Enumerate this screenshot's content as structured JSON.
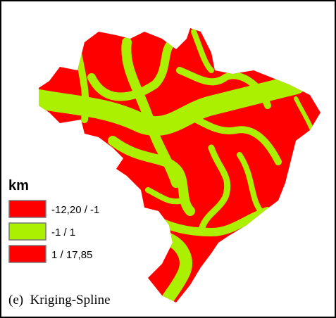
{
  "legend": {
    "title": "km",
    "items": [
      {
        "label": "-12,20 / -1",
        "color": "#ff0000"
      },
      {
        "label": "-1 / 1",
        "color": "#aaf000"
      },
      {
        "label": "1 / 17,85",
        "color": "#ff0000"
      }
    ]
  },
  "caption": "(e)  Kriging-Spline"
}
